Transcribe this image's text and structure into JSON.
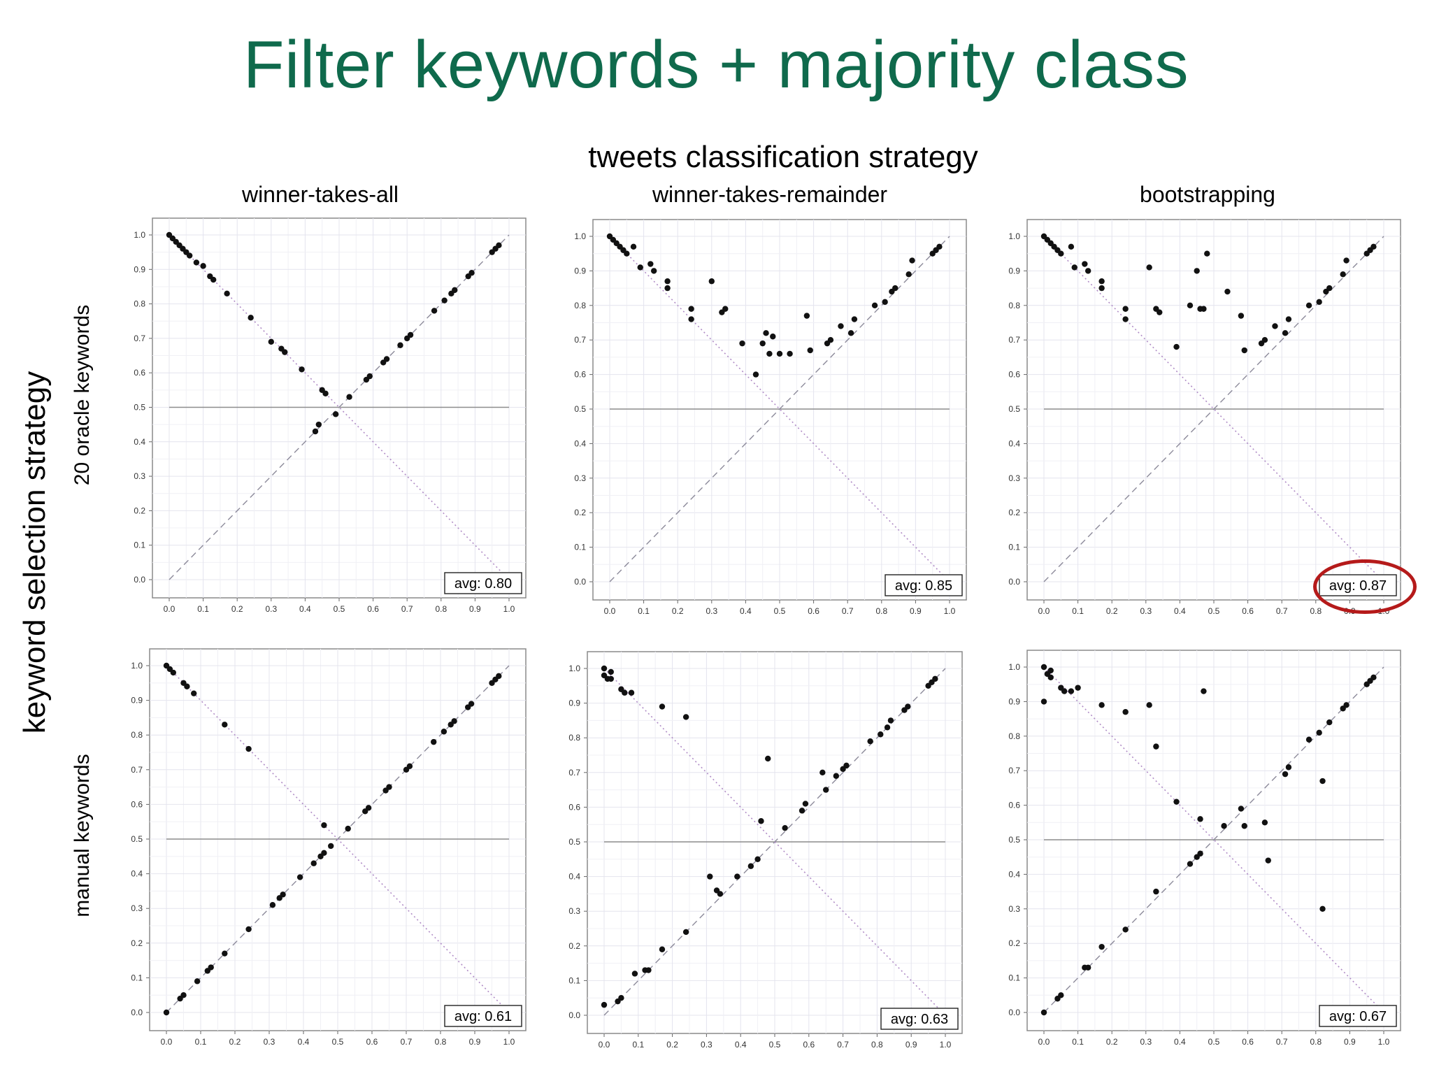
{
  "slide": {
    "title": "Filter keywords + majority class",
    "column_super_label": "tweets classification strategy",
    "row_super_label": "keyword selection strategy",
    "columns": [
      "winner-takes-all",
      "winner-takes-remainder",
      "bootstrapping"
    ],
    "rows": [
      "20 oracle keywords",
      "manual keywords"
    ],
    "highlight_color": "#b51a1a",
    "title_color": "#0f6a4c"
  },
  "chart_data": [
    {
      "type": "scatter",
      "title": "winner-takes-all",
      "row_label": "20 oracle keywords",
      "avg_label": "avg: 0.80",
      "xlim": [
        0,
        1
      ],
      "ylim": [
        0,
        1
      ],
      "ticks": [
        "0.0",
        "0.1",
        "0.2",
        "0.3",
        "0.4",
        "0.5",
        "0.6",
        "0.7",
        "0.8",
        "0.9",
        "1.0"
      ],
      "grid": true,
      "reference_lines": [
        "y = 0.5",
        "y = x (dashed)",
        "y = 1 - x (dotted)"
      ],
      "x": [
        0.0,
        0.01,
        0.02,
        0.03,
        0.04,
        0.05,
        0.06,
        0.08,
        0.1,
        0.12,
        0.13,
        0.17,
        0.24,
        0.3,
        0.33,
        0.34,
        0.39,
        0.45,
        0.46,
        0.97,
        0.96,
        0.95,
        0.89,
        0.88,
        0.84,
        0.83,
        0.81,
        0.78,
        0.71,
        0.7,
        0.68,
        0.64,
        0.63,
        0.59,
        0.58,
        0.53,
        0.49,
        0.44,
        0.43
      ],
      "y": [
        1.0,
        0.99,
        0.98,
        0.97,
        0.96,
        0.95,
        0.94,
        0.92,
        0.91,
        0.88,
        0.87,
        0.83,
        0.76,
        0.69,
        0.67,
        0.66,
        0.61,
        0.55,
        0.54,
        0.97,
        0.96,
        0.95,
        0.89,
        0.88,
        0.84,
        0.83,
        0.81,
        0.78,
        0.71,
        0.7,
        0.68,
        0.64,
        0.63,
        0.59,
        0.58,
        0.53,
        0.48,
        0.45,
        0.43
      ]
    },
    {
      "type": "scatter",
      "title": "winner-takes-remainder",
      "row_label": "20 oracle keywords",
      "avg_label": "avg: 0.85",
      "xlim": [
        0,
        1
      ],
      "ylim": [
        0,
        1
      ],
      "ticks": [
        "0.0",
        "0.1",
        "0.2",
        "0.3",
        "0.4",
        "0.5",
        "0.6",
        "0.7",
        "0.8",
        "0.9",
        "1.0"
      ],
      "grid": true,
      "reference_lines": [
        "y = 0.5",
        "y = x (dashed)",
        "y = 1 - x (dotted)"
      ],
      "x": [
        0.0,
        0.01,
        0.02,
        0.03,
        0.04,
        0.05,
        0.07,
        0.09,
        0.12,
        0.13,
        0.17,
        0.17,
        0.24,
        0.24,
        0.3,
        0.33,
        0.34,
        0.39,
        0.43,
        0.45,
        0.46,
        0.47,
        0.48,
        0.5,
        0.53,
        0.58,
        0.59,
        0.64,
        0.65,
        0.68,
        0.71,
        0.72,
        0.78,
        0.81,
        0.83,
        0.84,
        0.88,
        0.89,
        0.95,
        0.96,
        0.97
      ],
      "y": [
        1.0,
        0.99,
        0.98,
        0.97,
        0.96,
        0.95,
        0.97,
        0.91,
        0.92,
        0.9,
        0.87,
        0.85,
        0.79,
        0.76,
        0.87,
        0.78,
        0.79,
        0.69,
        0.6,
        0.69,
        0.72,
        0.66,
        0.71,
        0.66,
        0.66,
        0.77,
        0.67,
        0.69,
        0.7,
        0.74,
        0.72,
        0.76,
        0.8,
        0.81,
        0.84,
        0.85,
        0.89,
        0.93,
        0.95,
        0.96,
        0.97
      ]
    },
    {
      "type": "scatter",
      "title": "bootstrapping",
      "row_label": "20 oracle keywords",
      "avg_label": "avg: 0.87",
      "xlim": [
        0,
        1
      ],
      "ylim": [
        0,
        1
      ],
      "ticks": [
        "0.0",
        "0.1",
        "0.2",
        "0.3",
        "0.4",
        "0.5",
        "0.6",
        "0.7",
        "0.8",
        "0.9",
        "1.0"
      ],
      "grid": true,
      "reference_lines": [
        "y = 0.5",
        "y = x (dashed)",
        "y = 1 - x (dotted)"
      ],
      "x": [
        0.0,
        0.01,
        0.02,
        0.03,
        0.04,
        0.05,
        0.08,
        0.09,
        0.12,
        0.13,
        0.17,
        0.17,
        0.24,
        0.24,
        0.31,
        0.33,
        0.34,
        0.39,
        0.43,
        0.45,
        0.46,
        0.47,
        0.48,
        0.54,
        0.58,
        0.59,
        0.64,
        0.65,
        0.68,
        0.71,
        0.72,
        0.78,
        0.81,
        0.83,
        0.84,
        0.88,
        0.89,
        0.95,
        0.96,
        0.97
      ],
      "y": [
        1.0,
        0.99,
        0.98,
        0.97,
        0.96,
        0.95,
        0.97,
        0.91,
        0.92,
        0.9,
        0.87,
        0.85,
        0.79,
        0.76,
        0.91,
        0.79,
        0.78,
        0.68,
        0.8,
        0.9,
        0.79,
        0.79,
        0.95,
        0.84,
        0.77,
        0.67,
        0.69,
        0.7,
        0.74,
        0.72,
        0.76,
        0.8,
        0.81,
        0.84,
        0.85,
        0.89,
        0.93,
        0.95,
        0.96,
        0.97
      ]
    },
    {
      "type": "scatter",
      "title": "winner-takes-all",
      "row_label": "manual keywords",
      "avg_label": "avg: 0.61",
      "xlim": [
        0,
        1
      ],
      "ylim": [
        0,
        1
      ],
      "ticks": [
        "0.0",
        "0.1",
        "0.2",
        "0.3",
        "0.4",
        "0.5",
        "0.6",
        "0.7",
        "0.8",
        "0.9",
        "1.0"
      ],
      "grid": true,
      "reference_lines": [
        "y = 0.5",
        "y = x (dashed)",
        "y = 1 - x (dotted)"
      ],
      "x": [
        0.0,
        0.01,
        0.02,
        0.05,
        0.06,
        0.08,
        0.17,
        0.24,
        0.46,
        0.0,
        0.04,
        0.05,
        0.09,
        0.12,
        0.13,
        0.17,
        0.24,
        0.31,
        0.33,
        0.34,
        0.39,
        0.43,
        0.45,
        0.46,
        0.48,
        0.53,
        0.58,
        0.59,
        0.64,
        0.65,
        0.7,
        0.71,
        0.78,
        0.81,
        0.83,
        0.84,
        0.88,
        0.89,
        0.95,
        0.96,
        0.97
      ],
      "y": [
        1.0,
        0.99,
        0.98,
        0.95,
        0.94,
        0.92,
        0.83,
        0.76,
        0.54,
        0.0,
        0.04,
        0.05,
        0.09,
        0.12,
        0.13,
        0.17,
        0.24,
        0.31,
        0.33,
        0.34,
        0.39,
        0.43,
        0.45,
        0.46,
        0.48,
        0.53,
        0.58,
        0.59,
        0.64,
        0.65,
        0.7,
        0.71,
        0.78,
        0.81,
        0.83,
        0.84,
        0.88,
        0.89,
        0.95,
        0.96,
        0.97
      ]
    },
    {
      "type": "scatter",
      "title": "winner-takes-remainder",
      "row_label": "manual keywords",
      "avg_label": "avg: 0.63",
      "xlim": [
        0,
        1
      ],
      "ylim": [
        0,
        1
      ],
      "ticks": [
        "0.0",
        "0.1",
        "0.2",
        "0.3",
        "0.4",
        "0.5",
        "0.6",
        "0.7",
        "0.8",
        "0.9",
        "1.0"
      ],
      "grid": true,
      "reference_lines": [
        "y = 0.5",
        "y = x (dashed)",
        "y = 1 - x (dotted)"
      ],
      "x": [
        0.0,
        0.0,
        0.01,
        0.02,
        0.02,
        0.05,
        0.06,
        0.08,
        0.17,
        0.24,
        0.48,
        0.0,
        0.04,
        0.05,
        0.09,
        0.12,
        0.13,
        0.17,
        0.24,
        0.31,
        0.33,
        0.34,
        0.39,
        0.43,
        0.45,
        0.46,
        0.53,
        0.58,
        0.59,
        0.64,
        0.65,
        0.68,
        0.7,
        0.71,
        0.78,
        0.81,
        0.83,
        0.84,
        0.88,
        0.89,
        0.95,
        0.96,
        0.97
      ],
      "y": [
        1.0,
        0.98,
        0.97,
        0.99,
        0.97,
        0.94,
        0.93,
        0.93,
        0.89,
        0.86,
        0.74,
        0.03,
        0.04,
        0.05,
        0.12,
        0.13,
        0.13,
        0.19,
        0.24,
        0.4,
        0.36,
        0.35,
        0.4,
        0.43,
        0.45,
        0.56,
        0.54,
        0.59,
        0.61,
        0.7,
        0.65,
        0.69,
        0.71,
        0.72,
        0.79,
        0.81,
        0.83,
        0.85,
        0.88,
        0.89,
        0.95,
        0.96,
        0.97
      ]
    },
    {
      "type": "scatter",
      "title": "bootstrapping",
      "row_label": "manual keywords",
      "avg_label": "avg: 0.67",
      "xlim": [
        0,
        1
      ],
      "ylim": [
        0,
        1
      ],
      "ticks": [
        "0.0",
        "0.1",
        "0.2",
        "0.3",
        "0.4",
        "0.5",
        "0.6",
        "0.7",
        "0.8",
        "0.9",
        "1.0"
      ],
      "grid": true,
      "reference_lines": [
        "y = 0.5",
        "y = x (dashed)",
        "y = 1 - x (dotted)"
      ],
      "x": [
        0.0,
        0.0,
        0.01,
        0.02,
        0.02,
        0.05,
        0.06,
        0.08,
        0.1,
        0.17,
        0.24,
        0.31,
        0.33,
        0.47,
        0.0,
        0.04,
        0.05,
        0.12,
        0.13,
        0.17,
        0.24,
        0.33,
        0.39,
        0.43,
        0.45,
        0.46,
        0.46,
        0.53,
        0.58,
        0.59,
        0.65,
        0.66,
        0.71,
        0.72,
        0.78,
        0.81,
        0.82,
        0.82,
        0.84,
        0.88,
        0.89,
        0.95,
        0.96,
        0.97
      ],
      "y": [
        1.0,
        0.9,
        0.98,
        0.99,
        0.97,
        0.94,
        0.93,
        0.93,
        0.94,
        0.89,
        0.87,
        0.89,
        0.77,
        0.93,
        0.0,
        0.04,
        0.05,
        0.13,
        0.13,
        0.19,
        0.24,
        0.35,
        0.61,
        0.43,
        0.45,
        0.46,
        0.56,
        0.54,
        0.59,
        0.54,
        0.55,
        0.44,
        0.69,
        0.71,
        0.79,
        0.81,
        0.3,
        0.67,
        0.84,
        0.88,
        0.89,
        0.95,
        0.96,
        0.97
      ]
    }
  ]
}
